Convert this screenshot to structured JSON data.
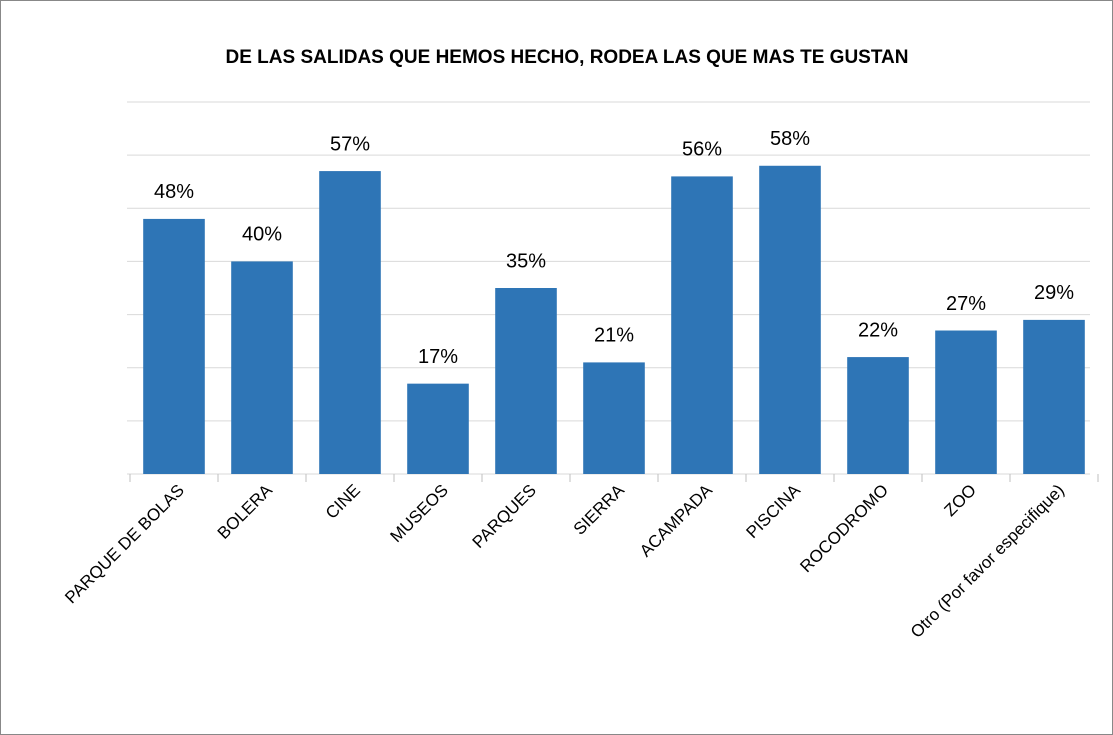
{
  "chart_data": {
    "type": "bar",
    "title": "DE LAS SALIDAS QUE HEMOS HECHO, RODEA LAS QUE MAS TE GUSTAN",
    "categories": [
      "PARQUE DE BOLAS",
      "BOLERA",
      "CINE",
      "MUSEOS",
      "PARQUES",
      "SIERRA",
      "ACAMPADA",
      "PISCINA",
      "ROCODROMO",
      "ZOO",
      "Otro (Por favor especifique)"
    ],
    "values": [
      48,
      40,
      57,
      17,
      35,
      21,
      56,
      58,
      22,
      27,
      29
    ],
    "value_labels": [
      "48%",
      "40%",
      "57%",
      "17%",
      "35%",
      "21%",
      "56%",
      "58%",
      "22%",
      "27%",
      "29%"
    ],
    "color": "#2e75b6",
    "ylim": [
      0,
      70
    ],
    "yticks": [
      0,
      10,
      20,
      30,
      40,
      50,
      60,
      70
    ],
    "grid": true
  }
}
